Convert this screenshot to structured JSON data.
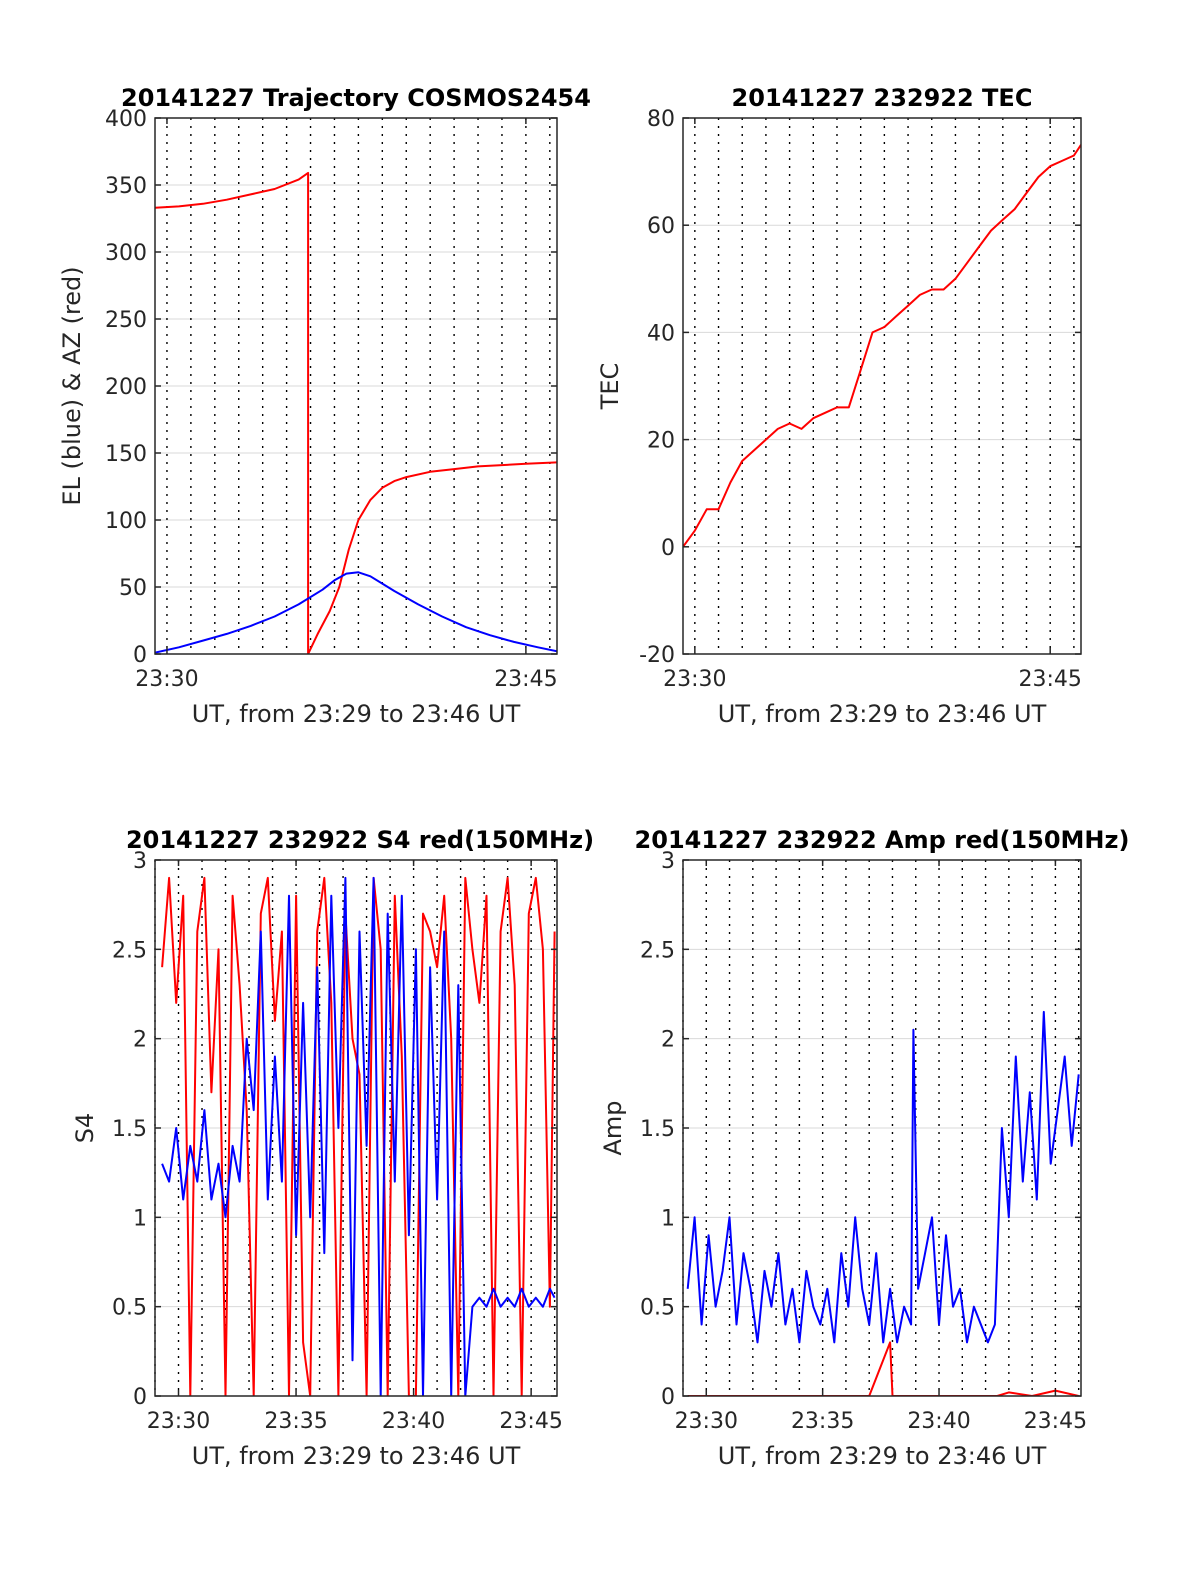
{
  "colors": {
    "red": "#ff0000",
    "blue": "#0000ff",
    "grid": "#d9d9d9",
    "axis": "#262626",
    "background": "#ffffff"
  },
  "chart_data": [
    {
      "type": "line",
      "title": "20141227 Trajectory COSMOS2454",
      "xlabel": "UT, from 23:29 to 23:46 UT",
      "ylabel": "EL (blue) & AZ (red)",
      "xlim": [
        29.5,
        46.3
      ],
      "ylim": [
        0,
        400
      ],
      "xticks": [
        30,
        45
      ],
      "xtick_labels": [
        "23:30",
        "23:45"
      ],
      "yticks": [
        0,
        50,
        100,
        150,
        200,
        250,
        300,
        350,
        400
      ],
      "ytick_labels": [
        "0",
        "50",
        "100",
        "150",
        "200",
        "250",
        "300",
        "350",
        "400"
      ],
      "grid": true,
      "series": [
        {
          "color": "red",
          "x": [
            29.5,
            30.5,
            31.5,
            32.5,
            33.5,
            34.5,
            35.5,
            35.9,
            35.9,
            36.3,
            36.8,
            37.2,
            37.6,
            38.0,
            38.5,
            39.0,
            39.5,
            40.0,
            41.0,
            42.0,
            43.0,
            44.0,
            45.0,
            46.3
          ],
          "y": [
            333,
            334,
            336,
            339,
            343,
            347,
            354,
            359,
            0,
            15,
            32,
            50,
            78,
            100,
            115,
            124,
            129,
            132,
            136,
            138,
            140,
            141,
            142,
            143
          ]
        },
        {
          "color": "blue",
          "x": [
            29.5,
            30.5,
            31.5,
            32.5,
            33.5,
            34.5,
            35.5,
            36.5,
            37.0,
            37.5,
            38.0,
            38.5,
            39.5,
            40.5,
            41.5,
            42.5,
            43.5,
            44.5,
            45.5,
            46.3
          ],
          "y": [
            1,
            5,
            10,
            15,
            21,
            28,
            37,
            48,
            55,
            60,
            61,
            58,
            47,
            37,
            28,
            20,
            14,
            9,
            5,
            2
          ]
        }
      ]
    },
    {
      "type": "line",
      "title": "20141227 232922 TEC",
      "xlabel": "UT, from 23:29 to 23:46 UT",
      "ylabel": "TEC",
      "xlim": [
        29.5,
        46.3
      ],
      "ylim": [
        -20,
        80
      ],
      "xticks": [
        30,
        45
      ],
      "xtick_labels": [
        "23:30",
        "23:45"
      ],
      "yticks": [
        -20,
        0,
        20,
        40,
        60,
        80
      ],
      "ytick_labels": [
        "-20",
        "0",
        "20",
        "40",
        "60",
        "80"
      ],
      "grid": true,
      "series": [
        {
          "color": "red",
          "x": [
            29.5,
            30.0,
            30.5,
            31.0,
            31.5,
            32.0,
            32.5,
            33.0,
            33.5,
            34.0,
            34.5,
            35.0,
            35.5,
            36.0,
            36.5,
            37.0,
            37.5,
            38.0,
            38.5,
            39.0,
            39.5,
            40.0,
            40.5,
            41.0,
            41.5,
            42.0,
            42.5,
            43.0,
            43.5,
            44.0,
            44.5,
            45.0,
            45.5,
            46.0,
            46.3
          ],
          "y": [
            0,
            3,
            7,
            7,
            12,
            16,
            18,
            20,
            22,
            23,
            22,
            24,
            25,
            26,
            26,
            33,
            40,
            41,
            43,
            45,
            47,
            48,
            48,
            50,
            53,
            56,
            59,
            61,
            63,
            66,
            69,
            71,
            72,
            73,
            75
          ]
        }
      ]
    },
    {
      "type": "line",
      "title": "20141227 232922 S4 red(150MHz)",
      "xlabel": "UT, from 23:29 to 23:46 UT",
      "ylabel": "S4",
      "xlim": [
        29.0,
        46.1
      ],
      "ylim": [
        0,
        3
      ],
      "xticks": [
        30,
        35,
        40,
        45
      ],
      "xtick_labels": [
        "23:30",
        "23:35",
        "23:40",
        "23:45"
      ],
      "yticks": [
        0,
        0.5,
        1,
        1.5,
        2,
        2.5,
        3
      ],
      "ytick_labels": [
        "0",
        "0.5",
        "1",
        "1.5",
        "2",
        "2.5",
        "3"
      ],
      "grid": true,
      "series": [
        {
          "color": "red",
          "x": [
            29.3,
            29.6,
            29.9,
            30.2,
            30.5,
            30.8,
            31.1,
            31.4,
            31.7,
            32.0,
            32.3,
            32.6,
            32.9,
            33.2,
            33.5,
            33.8,
            34.1,
            34.4,
            34.7,
            35.0,
            35.3,
            35.6,
            35.9,
            36.2,
            36.5,
            36.8,
            37.1,
            37.4,
            37.7,
            38.0,
            38.3,
            38.6,
            38.9,
            39.2,
            39.5,
            39.8,
            40.1,
            40.4,
            40.7,
            41.0,
            41.3,
            41.6,
            41.9,
            42.2,
            42.5,
            42.8,
            43.1,
            43.4,
            43.7,
            44.0,
            44.3,
            44.6,
            44.9,
            45.2,
            45.5,
            45.8,
            46.0
          ],
          "y": [
            2.4,
            2.9,
            2.2,
            2.8,
            0.0,
            2.6,
            2.9,
            1.7,
            2.5,
            0.0,
            2.8,
            2.3,
            1.6,
            0.0,
            2.7,
            2.9,
            2.1,
            2.6,
            0.0,
            2.8,
            0.3,
            0.0,
            2.6,
            2.9,
            2.2,
            0.0,
            2.7,
            2.0,
            1.8,
            0.0,
            2.9,
            2.5,
            0.0,
            2.8,
            1.9,
            0.0,
            0.0,
            2.7,
            2.6,
            2.4,
            2.8,
            2.0,
            0.0,
            2.9,
            2.5,
            2.2,
            2.8,
            0.0,
            2.6,
            2.9,
            2.3,
            0.0,
            2.7,
            2.9,
            2.5,
            0.5,
            2.6
          ]
        },
        {
          "color": "blue",
          "x": [
            29.3,
            29.6,
            29.9,
            30.2,
            30.5,
            30.8,
            31.1,
            31.4,
            31.7,
            32.0,
            32.3,
            32.6,
            32.9,
            33.2,
            33.5,
            33.8,
            34.1,
            34.4,
            34.7,
            35.0,
            35.3,
            35.6,
            35.9,
            36.2,
            36.5,
            36.8,
            37.1,
            37.4,
            37.7,
            38.0,
            38.3,
            38.6,
            38.9,
            39.2,
            39.5,
            39.8,
            40.1,
            40.4,
            40.7,
            41.0,
            41.3,
            41.6,
            41.9,
            42.2,
            42.5,
            42.8,
            43.1,
            43.4,
            43.7,
            44.0,
            44.3,
            44.6,
            44.9,
            45.2,
            45.5,
            45.8,
            46.0
          ],
          "y": [
            1.3,
            1.2,
            1.5,
            1.1,
            1.4,
            1.2,
            1.6,
            1.1,
            1.3,
            1.0,
            1.4,
            1.2,
            2.0,
            1.6,
            2.6,
            1.1,
            1.9,
            1.2,
            2.8,
            0.9,
            2.2,
            1.0,
            2.4,
            0.8,
            2.8,
            1.5,
            2.9,
            0.2,
            2.6,
            1.4,
            2.9,
            0.0,
            2.7,
            1.2,
            2.8,
            0.9,
            2.5,
            0.0,
            2.4,
            1.1,
            2.6,
            0.0,
            2.3,
            0.0,
            0.5,
            0.55,
            0.5,
            0.6,
            0.5,
            0.55,
            0.5,
            0.6,
            0.5,
            0.55,
            0.5,
            0.6,
            0.55
          ]
        }
      ]
    },
    {
      "type": "line",
      "title": "20141227 232922 Amp red(150MHz)",
      "xlabel": "UT, from 23:29 to 23:46 UT",
      "ylabel": "Amp",
      "xlim": [
        29.0,
        46.1
      ],
      "ylim": [
        0,
        3
      ],
      "xticks": [
        30,
        35,
        40,
        45
      ],
      "xtick_labels": [
        "23:30",
        "23:35",
        "23:40",
        "23:45"
      ],
      "yticks": [
        0,
        0.5,
        1,
        1.5,
        2,
        2.5,
        3
      ],
      "ytick_labels": [
        "0",
        "0.5",
        "1",
        "1.5",
        "2",
        "2.5",
        "3"
      ],
      "grid": true,
      "series": [
        {
          "color": "red",
          "x": [
            29.2,
            30.0,
            31.0,
            32.0,
            33.0,
            34.0,
            35.0,
            36.0,
            37.0,
            37.9,
            38.0,
            39.0,
            40.0,
            41.0,
            42.0,
            42.5,
            43.0,
            44.0,
            45.0,
            46.0
          ],
          "y": [
            0.0,
            0.0,
            0.0,
            0.0,
            0.0,
            0.0,
            0.0,
            0.0,
            0.0,
            0.3,
            0.0,
            0.0,
            0.0,
            0.0,
            0.0,
            0.0,
            0.02,
            0.0,
            0.03,
            0.0
          ]
        },
        {
          "color": "blue",
          "x": [
            29.2,
            29.5,
            29.8,
            30.1,
            30.4,
            30.7,
            31.0,
            31.3,
            31.6,
            31.9,
            32.2,
            32.5,
            32.8,
            33.1,
            33.4,
            33.7,
            34.0,
            34.3,
            34.6,
            34.9,
            35.2,
            35.5,
            35.8,
            36.1,
            36.4,
            36.7,
            37.0,
            37.3,
            37.6,
            37.9,
            38.2,
            38.5,
            38.8,
            38.9,
            39.1,
            39.4,
            39.7,
            40.0,
            40.3,
            40.6,
            40.9,
            41.2,
            41.5,
            41.8,
            42.1,
            42.4,
            42.7,
            43.0,
            43.3,
            43.6,
            43.9,
            44.2,
            44.5,
            44.8,
            45.1,
            45.4,
            45.7,
            46.0
          ],
          "y": [
            0.6,
            1.0,
            0.4,
            0.9,
            0.5,
            0.7,
            1.0,
            0.4,
            0.8,
            0.6,
            0.3,
            0.7,
            0.5,
            0.8,
            0.4,
            0.6,
            0.3,
            0.7,
            0.5,
            0.4,
            0.6,
            0.3,
            0.8,
            0.5,
            1.0,
            0.6,
            0.4,
            0.8,
            0.3,
            0.6,
            0.3,
            0.5,
            0.4,
            2.05,
            0.6,
            0.8,
            1.0,
            0.4,
            0.9,
            0.5,
            0.6,
            0.3,
            0.5,
            0.4,
            0.3,
            0.4,
            1.5,
            1.0,
            1.9,
            1.2,
            1.7,
            1.1,
            2.15,
            1.3,
            1.6,
            1.9,
            1.4,
            1.8
          ]
        }
      ]
    }
  ]
}
